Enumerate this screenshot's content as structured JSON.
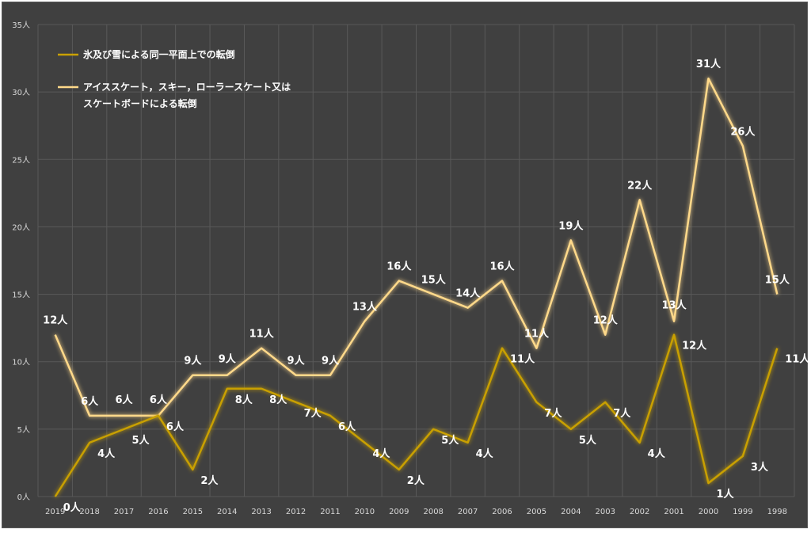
{
  "chart_data": {
    "type": "line",
    "title": "",
    "xlabel": "",
    "ylabel": "",
    "ylim": [
      0,
      35
    ],
    "yticks": [
      0,
      5,
      10,
      15,
      20,
      25,
      30,
      35
    ],
    "ytick_suffix": "人",
    "grid": true,
    "legend": "top-left",
    "categories": [
      "2019",
      "2018",
      "2017",
      "2016",
      "2015",
      "2014",
      "2013",
      "2012",
      "2011",
      "2010",
      "2009",
      "2008",
      "2007",
      "2006",
      "2005",
      "2004",
      "2003",
      "2002",
      "2001",
      "2000",
      "1999",
      "1998"
    ],
    "series": [
      {
        "name": "氷及び雪による同一平面上での転倒",
        "color": "#c9a000",
        "values": [
          0,
          4,
          5,
          6,
          2,
          8,
          8,
          7,
          6,
          4,
          2,
          5,
          4,
          11,
          7,
          5,
          7,
          4,
          12,
          1,
          3,
          11
        ],
        "labels": [
          "0人",
          "4人",
          "5人",
          "6人",
          "2人",
          "8人",
          "8人",
          "7人",
          "6人",
          "4人",
          "2人",
          "5人",
          "4人",
          "11人",
          "7人",
          "5人",
          "7人",
          "4人",
          "12人",
          "1人",
          "3人",
          "11人"
        ]
      },
      {
        "name_lines": [
          "アイススケート，スキー，ローラースケート又は",
          "スケートボードによる転倒"
        ],
        "color": "#ffd98a",
        "values": [
          12,
          6,
          6,
          6,
          9,
          9,
          11,
          9,
          9,
          13,
          16,
          15,
          14,
          16,
          11,
          19,
          12,
          22,
          13,
          31,
          26,
          15
        ],
        "labels": [
          "12人",
          "6人",
          "6人",
          "6人",
          "9人",
          "9人",
          "11人",
          "9人",
          "9人",
          "13人",
          "16人",
          "15人",
          "14人",
          "16人",
          "11人",
          "19人",
          "12人",
          "22人",
          "13人",
          "31人",
          "26人",
          "15人"
        ]
      }
    ]
  }
}
